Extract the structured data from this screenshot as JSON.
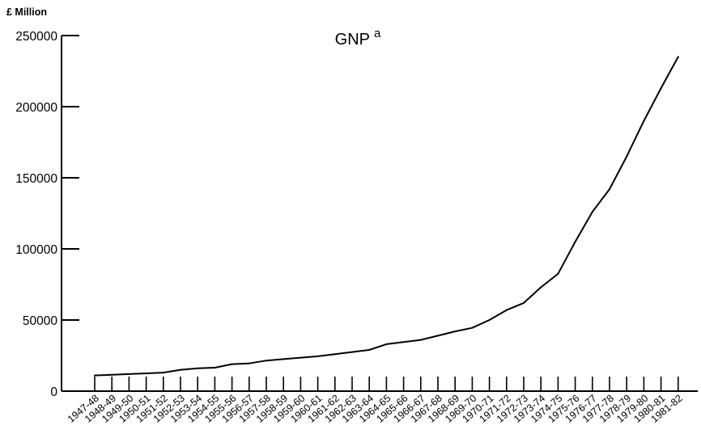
{
  "chart_data": {
    "type": "line",
    "title": "GNP",
    "title_superscript": "a",
    "ylabel": "£ Million",
    "xlabel": "",
    "ylim": [
      0,
      250000
    ],
    "yticks": [
      0,
      50000,
      100000,
      150000,
      200000,
      250000
    ],
    "grid": false,
    "categories": [
      "1947-48",
      "1948-49",
      "1949-50",
      "1950-51",
      "1951-52",
      "1952-53",
      "1953-54",
      "1954-55",
      "1955-56",
      "1956-57",
      "1957-58",
      "1958-59",
      "1959-60",
      "1960-61",
      "1961-62",
      "1962-63",
      "1963-64",
      "1964-65",
      "1965-66",
      "1966-67",
      "1967-68",
      "1968-69",
      "1969-70",
      "1970-71",
      "1971-72",
      "1972-73",
      "1973-74",
      "1974-75",
      "1975-76",
      "1976-77",
      "1977-78",
      "1978-79",
      "1979-80",
      "1980-81",
      "1981-82"
    ],
    "series": [
      {
        "values": [
          11000,
          11500,
          12000,
          12500,
          13000,
          15000,
          16000,
          16500,
          19000,
          19500,
          21500,
          22500,
          23500,
          24500,
          26000,
          27500,
          29000,
          33000,
          34500,
          36000,
          39000,
          42000,
          44500,
          50000,
          57000,
          62000,
          73000,
          82500,
          105000,
          126000,
          142000,
          165000,
          190000,
          213000,
          235000
        ]
      }
    ]
  }
}
